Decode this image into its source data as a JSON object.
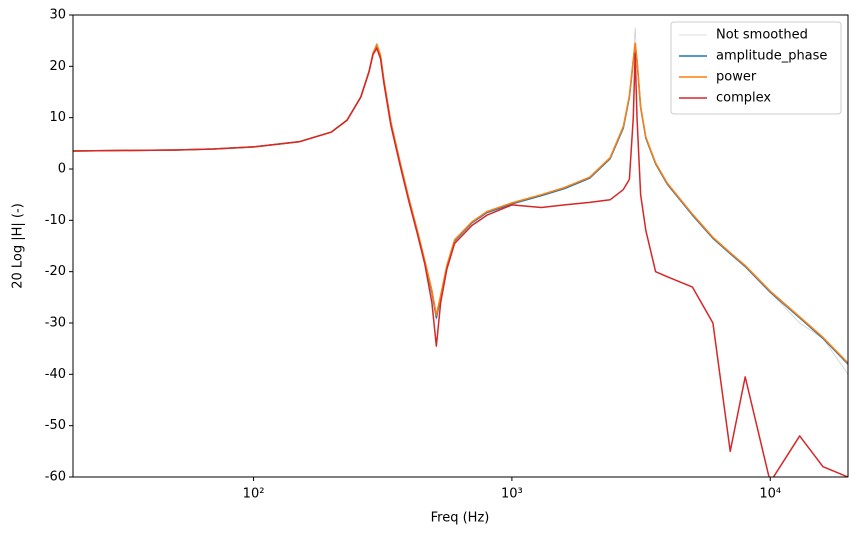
{
  "chart_data": {
    "type": "line",
    "xlabel": "Freq (Hz)",
    "ylabel": "20 Log |H| (-)",
    "xscale": "log",
    "xlim": [
      20,
      20000
    ],
    "ylim": [
      -60,
      30
    ],
    "xticks": [
      {
        "value": 100,
        "label": "10²"
      },
      {
        "value": 1000,
        "label": "10³"
      },
      {
        "value": 10000,
        "label": "10⁴"
      }
    ],
    "yticks": [
      -60,
      -50,
      -40,
      -30,
      -20,
      -10,
      0,
      10,
      20,
      30
    ],
    "legend": "upper right",
    "x": [
      20,
      30,
      50,
      70,
      100,
      150,
      200,
      230,
      260,
      280,
      290,
      300,
      310,
      320,
      340,
      370,
      400,
      430,
      460,
      490,
      510,
      530,
      560,
      600,
      700,
      800,
      1000,
      1300,
      1600,
      2000,
      2400,
      2700,
      2850,
      2950,
      3000,
      3050,
      3150,
      3300,
      3600,
      4000,
      5000,
      6000,
      7000,
      8000,
      10000,
      13000,
      16000,
      20000
    ],
    "series": [
      {
        "name": "Not smoothed",
        "color": "#d0d0d0",
        "width": 0.8,
        "values": [
          3.5,
          3.6,
          3.7,
          3.9,
          4.3,
          5.3,
          7.2,
          9.5,
          14,
          19,
          22.5,
          24.5,
          22,
          17,
          9,
          1,
          -6,
          -12,
          -18,
          -24,
          -29.5,
          -25,
          -19,
          -14,
          -10.5,
          -8.5,
          -6.8,
          -5.2,
          -3.8,
          -1.8,
          2,
          8,
          14,
          21,
          27.5,
          21,
          12,
          6,
          1,
          -3,
          -9,
          -13.5,
          -16.5,
          -19,
          -24,
          -30,
          -33,
          -40
        ]
      },
      {
        "name": "amplitude_phase",
        "color": "#1f77b4",
        "width": 1.5,
        "values": [
          3.5,
          3.6,
          3.7,
          3.9,
          4.3,
          5.3,
          7.2,
          9.5,
          14,
          19,
          22.5,
          24,
          22,
          17,
          9,
          1,
          -6,
          -12,
          -18,
          -24,
          -29,
          -25,
          -19,
          -14,
          -10.5,
          -8.5,
          -6.8,
          -5.2,
          -3.8,
          -1.8,
          2,
          8,
          14,
          21,
          24,
          21,
          12,
          6,
          1,
          -3,
          -9,
          -13.5,
          -16.5,
          -19,
          -24,
          -29,
          -33,
          -38
        ]
      },
      {
        "name": "power",
        "color": "#ff7f0e",
        "width": 1.5,
        "values": [
          3.5,
          3.6,
          3.7,
          3.9,
          4.3,
          5.3,
          7.2,
          9.5,
          14,
          19,
          22.6,
          24.3,
          22.2,
          17.2,
          9.2,
          1.1,
          -5.9,
          -11.9,
          -17.8,
          -23.6,
          -28.5,
          -24.6,
          -18.8,
          -13.8,
          -10.3,
          -8.3,
          -6.6,
          -5,
          -3.6,
          -1.6,
          2.2,
          8.3,
          14.3,
          21.3,
          24.5,
          21.3,
          12.2,
          6.2,
          1.2,
          -2.8,
          -8.8,
          -13.3,
          -16.3,
          -18.8,
          -23.8,
          -28.8,
          -32.8,
          -37.8
        ]
      },
      {
        "name": "complex",
        "color": "#d62728",
        "width": 1.5,
        "values": [
          3.5,
          3.6,
          3.7,
          3.9,
          4.3,
          5.3,
          7.2,
          9.5,
          14,
          19,
          22.3,
          23.5,
          21.5,
          16.5,
          8.5,
          0.5,
          -6.5,
          -12.5,
          -18.5,
          -26,
          -34.5,
          -26,
          -19.5,
          -14.5,
          -11,
          -9,
          -7,
          -7.5,
          -7,
          -6.5,
          -6,
          -4,
          -2,
          10,
          22.5,
          10,
          -5,
          -12,
          -20,
          -21,
          -23,
          -30,
          -55,
          -40.5,
          -61,
          -52,
          -58,
          -60
        ]
      }
    ]
  }
}
